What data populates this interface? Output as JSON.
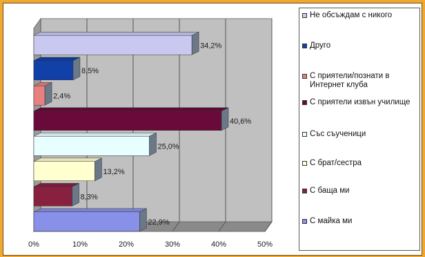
{
  "chart_data": {
    "type": "bar",
    "orientation": "horizontal",
    "categories": [
      "Не обсъждам с никого",
      "Друго",
      "С приятели/познати в Интернет клуба",
      "С приятели извън училище",
      "Със съученици",
      "С брат/сестра",
      "С баща ми",
      "С майка ми"
    ],
    "values": [
      34.2,
      8.5,
      2.4,
      40.6,
      25.0,
      13.2,
      8.3,
      22.9
    ],
    "data_labels": [
      "34,2%",
      "8,5%",
      "2,4%",
      "40,6%",
      "25,0%",
      "13,2%",
      "8,3%",
      "22,9%"
    ],
    "colors": [
      "#c8c8f0",
      "#1040a8",
      "#e88080",
      "#6a0a3a",
      "#e8ffff",
      "#ffffd0",
      "#882040",
      "#8890e8"
    ],
    "xlim": [
      0,
      50
    ],
    "xticks": [
      "0%",
      "10%",
      "20%",
      "30%",
      "40%",
      "50%"
    ],
    "legend_placement": "right",
    "grid": true
  }
}
